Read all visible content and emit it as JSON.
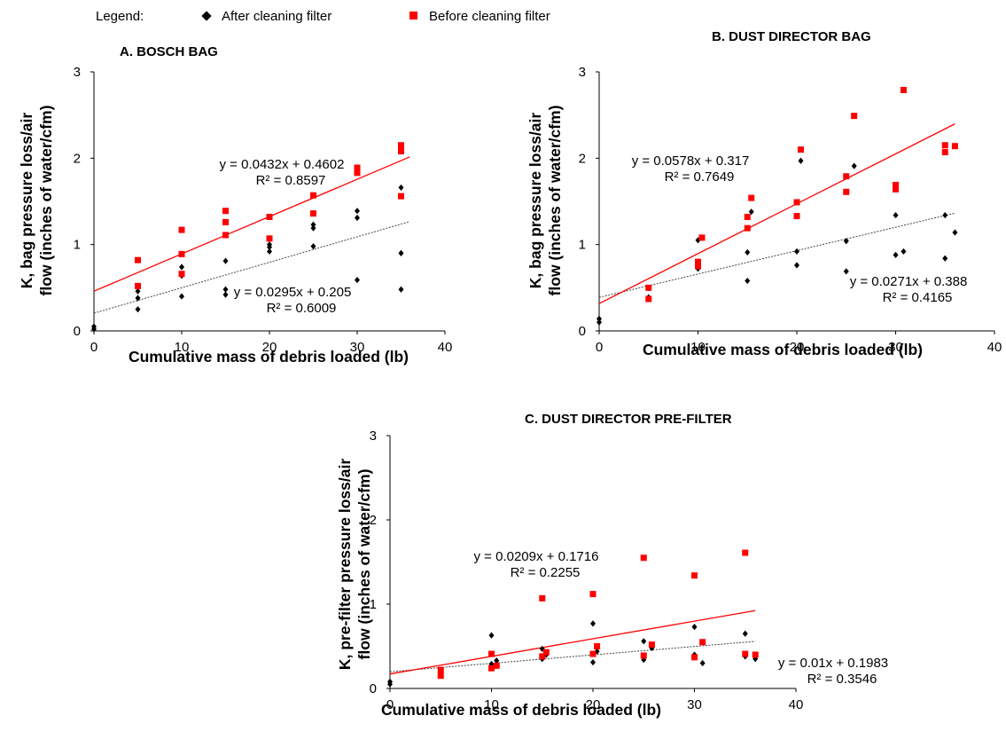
{
  "legend": {
    "label": "Legend:",
    "after_label": "After cleaning filter",
    "before_label": "Before cleaning filter",
    "after_color": "#000000",
    "before_color": "#ff0000",
    "after_marker": "diamond",
    "before_marker": "square"
  },
  "chart_data": [
    {
      "type": "scatter",
      "title": "A. BOSCH BAG",
      "xlabel": "Cumulative mass of debris loaded (lb)",
      "ylabel": [
        "K, bag pressure loss/air",
        "flow (inches of water/cfm)"
      ],
      "xlim": [
        0,
        40
      ],
      "ylim": [
        0,
        3
      ],
      "xticks": [
        0,
        10,
        20,
        30,
        40
      ],
      "yticks": [
        0,
        1,
        2,
        3
      ],
      "grid": false,
      "series": [
        {
          "name": "After cleaning filter",
          "color": "#000000",
          "marker": "diamond",
          "points": [
            [
              0,
              0.02
            ],
            [
              0,
              0.05
            ],
            [
              5,
              0.46
            ],
            [
              5,
              0.38
            ],
            [
              5,
              0.25
            ],
            [
              10,
              0.74
            ],
            [
              10,
              0.64
            ],
            [
              10,
              0.4
            ],
            [
              15,
              0.81
            ],
            [
              15,
              0.48
            ],
            [
              15,
              0.42
            ],
            [
              20,
              1.0
            ],
            [
              20,
              0.97
            ],
            [
              20,
              0.92
            ],
            [
              25,
              1.23
            ],
            [
              25,
              1.19
            ],
            [
              25,
              0.98
            ],
            [
              30,
              1.39
            ],
            [
              30,
              1.31
            ],
            [
              30,
              0.59
            ],
            [
              35,
              1.66
            ],
            [
              35,
              0.9
            ],
            [
              35,
              0.48
            ]
          ],
          "trendline": {
            "slope": 0.0295,
            "intercept": 0.205,
            "equation": "y = 0.0295x + 0.205",
            "r2": "R² = 0.6009"
          }
        },
        {
          "name": "Before cleaning filter",
          "color": "#ff0000",
          "marker": "square",
          "points": [
            [
              5,
              0.82
            ],
            [
              5,
              0.52
            ],
            [
              10,
              1.17
            ],
            [
              10,
              0.89
            ],
            [
              10,
              0.66
            ],
            [
              15,
              1.39
            ],
            [
              15,
              1.26
            ],
            [
              15,
              1.11
            ],
            [
              20,
              1.32
            ],
            [
              20,
              1.07
            ],
            [
              25,
              1.57
            ],
            [
              25,
              1.36
            ],
            [
              30,
              1.89
            ],
            [
              30,
              1.86
            ],
            [
              30,
              1.83
            ],
            [
              35,
              2.15
            ],
            [
              35,
              2.08
            ],
            [
              35,
              1.56
            ]
          ],
          "trendline": {
            "slope": 0.0432,
            "intercept": 0.4602,
            "equation": "y = 0.0432x + 0.4602",
            "r2": "R² = 0.8597"
          }
        }
      ]
    },
    {
      "type": "scatter",
      "title": "B. DUST DIRECTOR BAG",
      "xlabel": "Cumulative mass of debris loaded (lb)",
      "ylabel": [
        "K, bag pressure loss/air",
        "flow (inches of water/cfm)"
      ],
      "xlim": [
        0,
        40
      ],
      "ylim": [
        0,
        3
      ],
      "xticks": [
        0,
        10,
        20,
        30,
        40
      ],
      "yticks": [
        0,
        1,
        2,
        3
      ],
      "grid": false,
      "series": [
        {
          "name": "After cleaning filter",
          "color": "#000000",
          "marker": "diamond",
          "points": [
            [
              0,
              0.1
            ],
            [
              0,
              0.14
            ],
            [
              5,
              0.39
            ],
            [
              10,
              0.72
            ],
            [
              10,
              1.05
            ],
            [
              15,
              0.91
            ],
            [
              15,
              0.58
            ],
            [
              15.4,
              1.38
            ],
            [
              20,
              0.92
            ],
            [
              20,
              0.76
            ],
            [
              20.4,
              1.97
            ],
            [
              25,
              1.04
            ],
            [
              25,
              0.69
            ],
            [
              25.8,
              1.91
            ],
            [
              30,
              1.34
            ],
            [
              30,
              0.88
            ],
            [
              30.8,
              0.92
            ],
            [
              35,
              1.34
            ],
            [
              35,
              0.84
            ],
            [
              36,
              1.14
            ]
          ],
          "trendline": {
            "slope": 0.0271,
            "intercept": 0.388,
            "equation": "y = 0.0271x + 0.388",
            "r2": "R² = 0.4165"
          }
        },
        {
          "name": "Before cleaning filter",
          "color": "#ff0000",
          "marker": "square",
          "points": [
            [
              5,
              0.5
            ],
            [
              5,
              0.37
            ],
            [
              10,
              0.8
            ],
            [
              10,
              0.75
            ],
            [
              10.4,
              1.08
            ],
            [
              15,
              1.32
            ],
            [
              15,
              1.19
            ],
            [
              15.4,
              1.54
            ],
            [
              20,
              1.49
            ],
            [
              20,
              1.33
            ],
            [
              20.4,
              2.1
            ],
            [
              25,
              1.79
            ],
            [
              25,
              1.61
            ],
            [
              25.8,
              2.49
            ],
            [
              30,
              1.69
            ],
            [
              30,
              1.64
            ],
            [
              30.8,
              2.79
            ],
            [
              35,
              2.15
            ],
            [
              35,
              2.07
            ],
            [
              36,
              2.14
            ]
          ],
          "trendline": {
            "slope": 0.0578,
            "intercept": 0.317,
            "equation": "y = 0.0578x + 0.317",
            "r2": "R² = 0.7649"
          }
        }
      ]
    },
    {
      "type": "scatter",
      "title": "C. DUST DIRECTOR PRE-FILTER",
      "xlabel": "Cumulative mass of debris loaded (lb)",
      "ylabel": [
        "K, pre-filter pressure loss/air",
        "flow (inches of water/cfm)"
      ],
      "xlim": [
        0,
        40
      ],
      "ylim": [
        0,
        3
      ],
      "xticks": [
        0,
        10,
        20,
        30,
        40
      ],
      "yticks": [
        0,
        1,
        2,
        3
      ],
      "grid": false,
      "series": [
        {
          "name": "After cleaning filter",
          "color": "#000000",
          "marker": "diamond",
          "points": [
            [
              0,
              0.05
            ],
            [
              0,
              0.08
            ],
            [
              5,
              0.22
            ],
            [
              5,
              0.17
            ],
            [
              10,
              0.63
            ],
            [
              10,
              0.29
            ],
            [
              10.5,
              0.33
            ],
            [
              15,
              0.47
            ],
            [
              15,
              0.35
            ],
            [
              15.4,
              0.4
            ],
            [
              20,
              0.77
            ],
            [
              20,
              0.31
            ],
            [
              20.4,
              0.44
            ],
            [
              25,
              0.56
            ],
            [
              25,
              0.34
            ],
            [
              25.8,
              0.48
            ],
            [
              30,
              0.73
            ],
            [
              30,
              0.4
            ],
            [
              30.8,
              0.3
            ],
            [
              35,
              0.65
            ],
            [
              35,
              0.38
            ],
            [
              36,
              0.35
            ]
          ],
          "trendline": {
            "slope": 0.01,
            "intercept": 0.1983,
            "equation": "y = 0.01x + 0.1983",
            "r2": "R² = 0.3546"
          }
        },
        {
          "name": "Before cleaning filter",
          "color": "#ff0000",
          "marker": "square",
          "points": [
            [
              5,
              0.22
            ],
            [
              5,
              0.15
            ],
            [
              10,
              0.41
            ],
            [
              10,
              0.24
            ],
            [
              10.5,
              0.27
            ],
            [
              15,
              1.07
            ],
            [
              15,
              0.38
            ],
            [
              15.4,
              0.43
            ],
            [
              20,
              1.12
            ],
            [
              20,
              0.41
            ],
            [
              20.4,
              0.5
            ],
            [
              25,
              1.55
            ],
            [
              25,
              0.39
            ],
            [
              25.8,
              0.52
            ],
            [
              30,
              1.34
            ],
            [
              30,
              0.37
            ],
            [
              30.8,
              0.55
            ],
            [
              35,
              1.61
            ],
            [
              35,
              0.41
            ],
            [
              36,
              0.4
            ]
          ],
          "trendline": {
            "slope": 0.0209,
            "intercept": 0.1716,
            "equation": "y = 0.0209x + 0.1716",
            "r2": "R² = 0.2255"
          }
        }
      ]
    }
  ]
}
